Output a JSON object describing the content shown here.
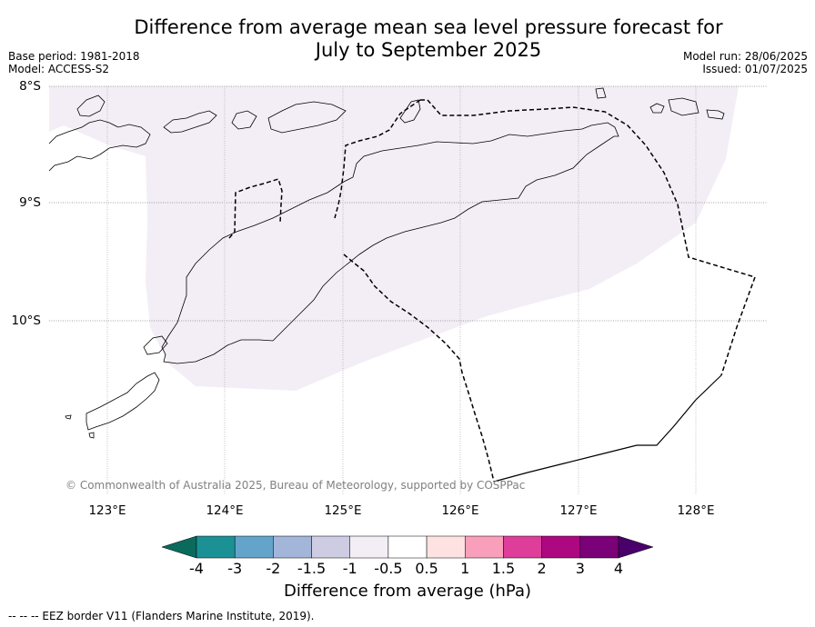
{
  "title_line1": "Difference from average mean sea level pressure forecast for",
  "title_line2": "July to September 2025",
  "base_period": "Base period: 1981-2018",
  "model": "Model: ACCESS-S2",
  "model_run": "Model run: 28/06/2025",
  "issued": "Issued: 01/07/2025",
  "copyright": "© Commonwealth of Australia 2025, Bureau of Meteorology, supported by COSPPac",
  "lat_labels": [
    "8°S",
    "9°S",
    "10°S"
  ],
  "lon_labels": [
    "123°E",
    "124°E",
    "125°E",
    "126°E",
    "127°E",
    "128°E"
  ],
  "colorbar": {
    "label": "Difference from average (hPa)",
    "ticks": [
      "-4",
      "-3",
      "-2",
      "-1.5",
      "-1",
      "-0.5",
      "0.5",
      "1",
      "1.5",
      "2",
      "3",
      "4"
    ],
    "colors": [
      "#0a6b5d",
      "#1b9196",
      "#63a4cb",
      "#a3b6da",
      "#cdcce3",
      "#f3eef6",
      "#ffffff",
      "#fde2e1",
      "#f99ebb",
      "#de3d9a",
      "#ad0782",
      "#7a0177",
      "#49006a"
    ]
  },
  "forecast_fill_color": "#f3eef6",
  "footnote": "--  --  -- EEZ border V11 (Flanders Marine Institute, 2019)."
}
